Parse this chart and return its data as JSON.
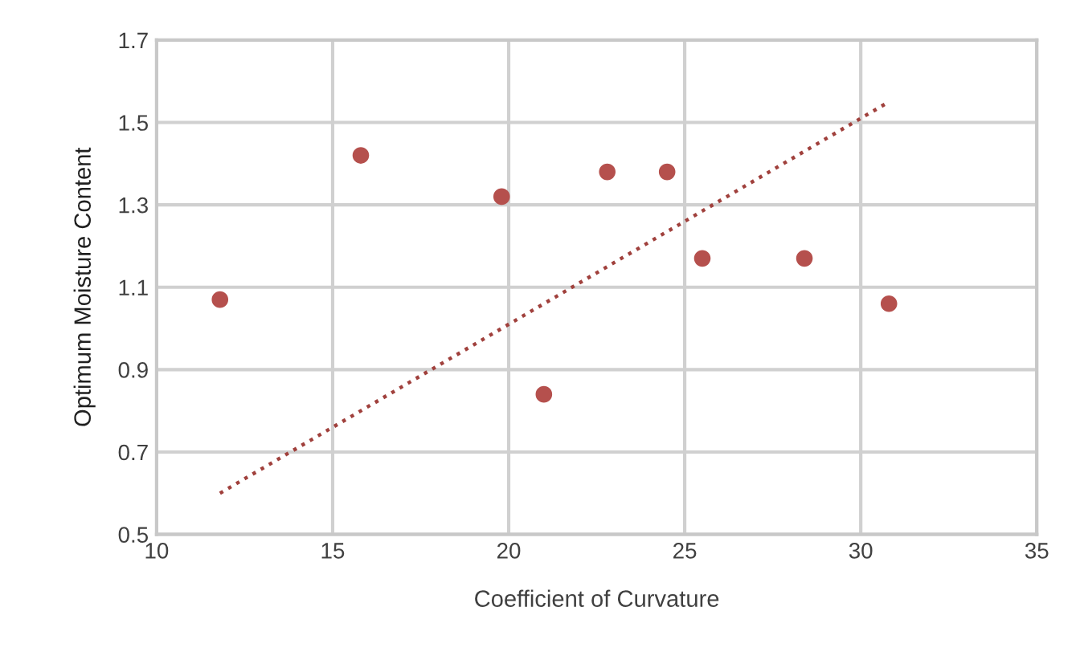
{
  "chart_data": {
    "type": "scatter",
    "xlabel": "Coefficient of Curvature",
    "ylabel": "Optimum Moisture Content",
    "xlim": [
      10,
      35
    ],
    "xticks": [
      10,
      15,
      20,
      25,
      30,
      35
    ],
    "ylim": [
      0.5,
      1.7
    ],
    "yticks": [
      0.5,
      0.7,
      0.9,
      1.1,
      1.3,
      1.5,
      1.7
    ],
    "grid": true,
    "legend": false,
    "series": [
      {
        "color": "#b5504d",
        "marker": "circle",
        "x": [
          11.8,
          15.8,
          19.8,
          21.0,
          22.8,
          24.5,
          25.5,
          28.4,
          30.8
        ],
        "values": [
          1.07,
          1.42,
          1.32,
          0.84,
          1.38,
          1.38,
          1.17,
          1.17,
          1.06
        ]
      },
      {
        "type": "line",
        "color": "#a0403c",
        "line_style": "dotted",
        "marker": "none",
        "x": [
          11.8,
          30.8
        ],
        "values": [
          0.6,
          1.55
        ]
      }
    ]
  }
}
